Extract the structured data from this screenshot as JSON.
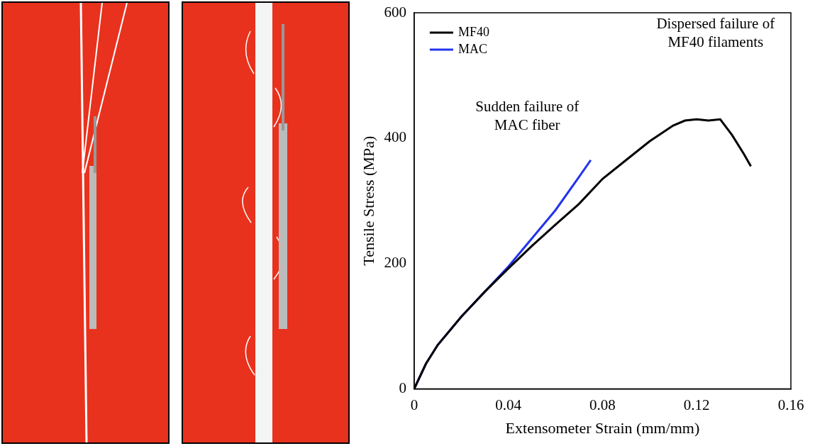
{
  "chart_data": {
    "type": "line",
    "x_label": "Extensometer Strain (mm/mm)",
    "y_label": "Tensile Stress (MPa)",
    "xlim": [
      0,
      0.16
    ],
    "xticks": [
      0,
      0.04,
      0.08,
      0.12,
      0.16
    ],
    "ylim": [
      0,
      600
    ],
    "yticks": [
      0,
      200,
      400,
      600
    ],
    "grid": false,
    "legend": "top-left",
    "annotations": [
      "Sudden failure of MAC fiber",
      "Dispersed failure of MF40 filaments"
    ],
    "series": [
      {
        "name": "MF40",
        "color": "#000000",
        "x": [
          0,
          0.005,
          0.01,
          0.02,
          0.03,
          0.04,
          0.05,
          0.06,
          0.07,
          0.08,
          0.09,
          0.1,
          0.11,
          0.115,
          0.12,
          0.125,
          0.13,
          0.135,
          0.14,
          0.143
        ],
        "values": [
          0,
          40,
          70,
          115,
          155,
          192,
          228,
          262,
          295,
          335,
          365,
          395,
          420,
          428,
          430,
          428,
          430,
          405,
          375,
          355
        ]
      },
      {
        "name": "MAC",
        "color": "#2233ee",
        "x": [
          0,
          0.005,
          0.01,
          0.02,
          0.03,
          0.04,
          0.05,
          0.06,
          0.07,
          0.075
        ],
        "values": [
          0,
          40,
          70,
          115,
          155,
          195,
          240,
          285,
          338,
          365
        ]
      }
    ]
  }
}
